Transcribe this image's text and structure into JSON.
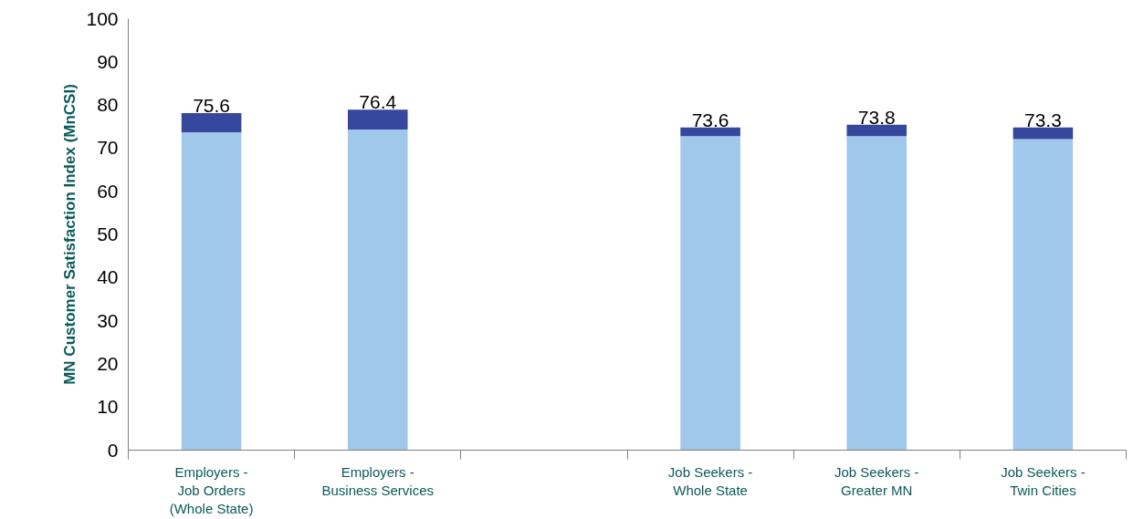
{
  "chart_data": {
    "type": "bar",
    "stacked": true,
    "ylabel": "MN Customer Satisfaction Index (MnCSI)",
    "categories": [
      "Employers -\nJob Orders\n(Whole State)",
      "Employers -\nBusiness Services",
      null,
      "Job Seekers -\nWhole State",
      "Job Seekers -\nGreater MN",
      "Job Seekers -\nTwin Cities"
    ],
    "series": [
      {
        "color": "#9fc8ea",
        "values": [
          73.7,
          74.3,
          null,
          72.8,
          72.8,
          72.1
        ]
      },
      {
        "color": "#36489d",
        "values": [
          4.4,
          4.6,
          null,
          2.0,
          2.6,
          2.7
        ]
      }
    ],
    "annotations": [
      {
        "text": "75.6",
        "x": "Employers -\nJob Orders\n(Whole State)",
        "y": 78.1
      },
      {
        "text": "76.4",
        "x": "Employers -\nBusiness Services",
        "y": 78.9
      },
      {
        "text": "73.6",
        "x": "Job Seekers -\nWhole State",
        "y": 74.8
      },
      {
        "text": "73.8",
        "x": "Job Seekers -\nGreater MN",
        "y": 75.4
      },
      {
        "text": "73.3",
        "x": "Job Seekers -\nTwin Cities",
        "y": 74.8
      }
    ],
    "ylim": [
      0,
      100
    ],
    "yticks": [
      0,
      10,
      20,
      30,
      40,
      50,
      60,
      70,
      80,
      90,
      100
    ],
    "grid": false
  }
}
